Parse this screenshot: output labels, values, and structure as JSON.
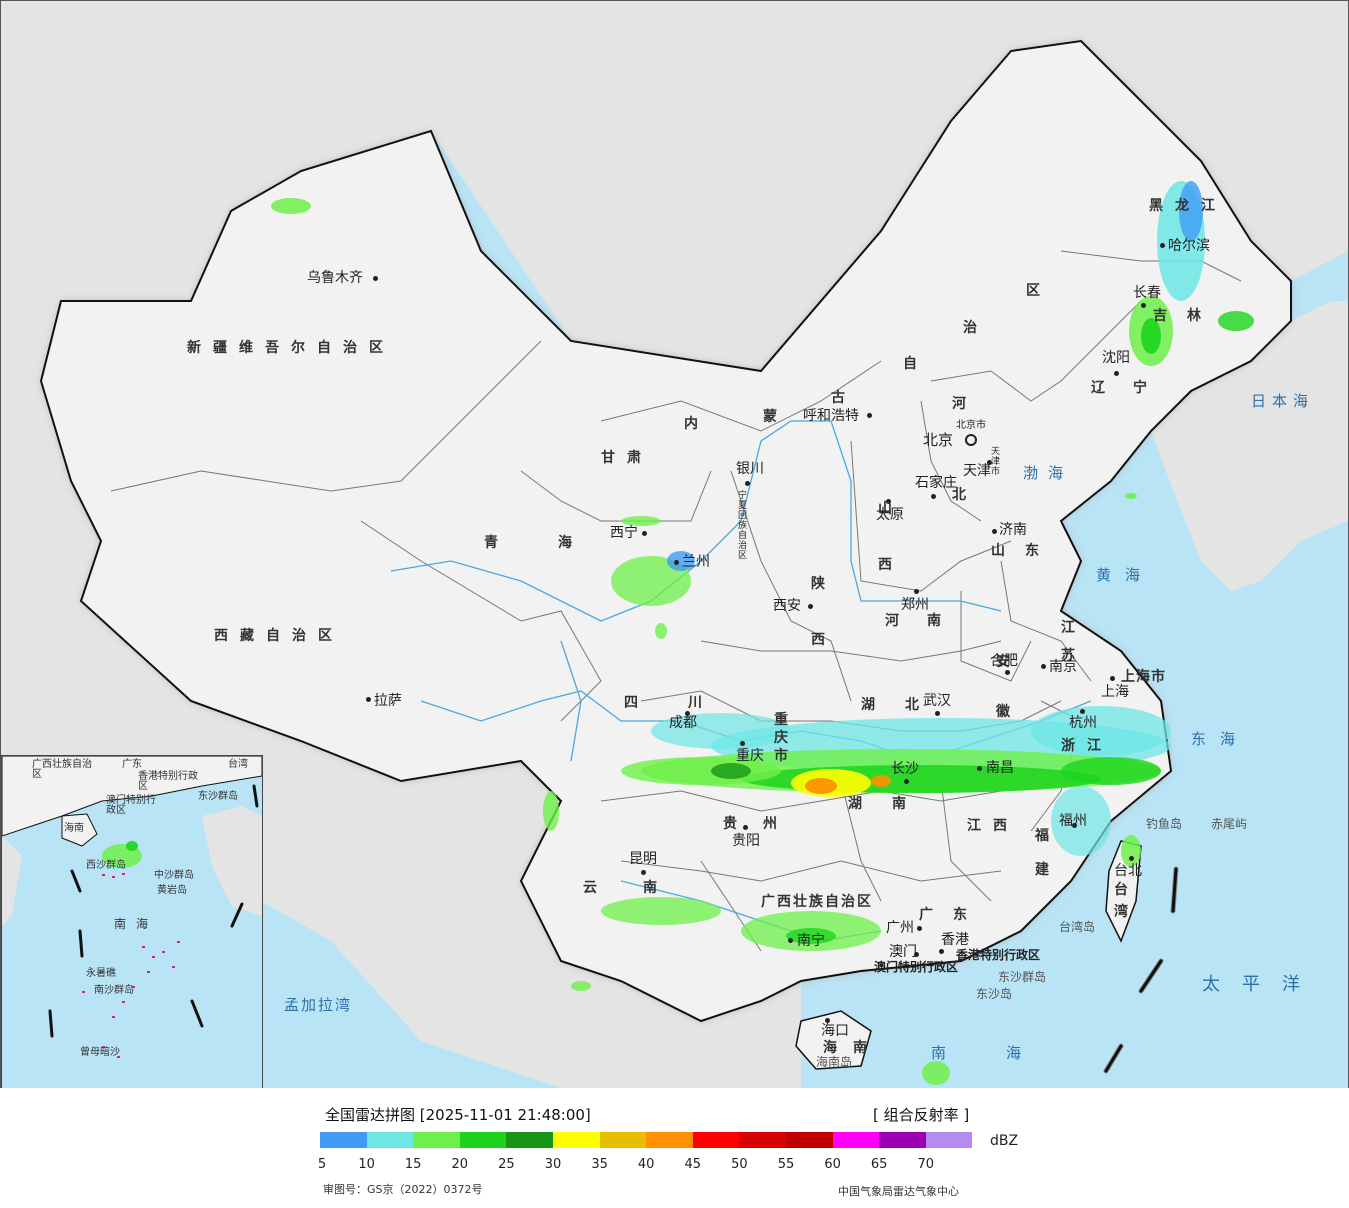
{
  "map": {
    "regions": {
      "xinjiang": "新疆维吾尔自治区",
      "xizang": "西藏自治区",
      "qinghai": "青海",
      "gansu": "甘肃",
      "neimenggu_1": "内",
      "neimenggu_2": "蒙",
      "neimenggu_3": "古",
      "neimenggu_4": "自",
      "neimenggu_5": "治",
      "neimenggu_6": "区",
      "heilongjiang": "黑龙江",
      "jilin": "吉林",
      "liaoning": "辽宁",
      "hebei_1": "河",
      "hebei_2": "北",
      "shanxi": "山西",
      "shaanxi": "陕西",
      "shandong": "山东",
      "henan": "河南",
      "jiangsu": "江苏",
      "anhui": "安徽",
      "sichuan": "四川",
      "chongqing": "重庆市",
      "hubei": "湖北",
      "hunan": "湖南",
      "jiangxi": "江西",
      "zhejiang": "浙江",
      "fujian": "福建",
      "guizhou": "贵州",
      "yunnan": "云南",
      "guangxi": "广西壮族自治区",
      "guangdong": "广东",
      "hainan": "海南",
      "taiwan": "台湾",
      "shanghai": "上海市",
      "ningxia": "宁夏回族自治区",
      "tianjin_region": "天津市",
      "beijing_region": "北京市",
      "hongkong": "香港特别行政区",
      "macau": "澳门特别行政区"
    },
    "cities": {
      "urumqi": "乌鲁木齐",
      "lhasa": "拉萨",
      "xining": "西宁",
      "lanzhou": "兰州",
      "yinchuan": "银川",
      "hohhot": "呼和浩特",
      "beijing": "北京",
      "tianjin": "天津",
      "shijiazhuang": "石家庄",
      "taiyuan": "太原",
      "jinan": "济南",
      "zhengzhou": "郑州",
      "xian": "西安",
      "harbin": "哈尔滨",
      "changchun": "长春",
      "shenyang": "沈阳",
      "nanjing": "南京",
      "hefei": "合肥",
      "shanghai": "上海",
      "hangzhou": "杭州",
      "wuhan": "武汉",
      "chengdu": "成都",
      "chongqing": "重庆",
      "changsha": "长沙",
      "nanchang": "南昌",
      "fuzhou": "福州",
      "guiyang": "贵阳",
      "kunming": "昆明",
      "nanning": "南宁",
      "guangzhou": "广州",
      "hongkong": "香港",
      "macau": "澳门",
      "haikou": "海口",
      "taibei": "台北"
    },
    "seas": {
      "japan_sea": "日本海",
      "bohai": "渤海",
      "yellow_sea": "黄海",
      "east_sea": "东海",
      "pacific": "太平洋",
      "south_sea": "南海",
      "bengal": "孟加拉湾"
    },
    "islands": {
      "diaoyu": "钓鱼岛",
      "chiwei": "赤尾屿",
      "taiwan_island": "台湾岛",
      "dongsha_islands": "东沙群岛",
      "dongsha": "东沙岛",
      "hainan_island": "海南岛"
    },
    "inset": {
      "guangdong": "广东",
      "taiwan": "台湾",
      "guangxi": "广西壮族自治区",
      "hongkong": "香港特别行政区",
      "macau": "澳门特别行政区",
      "dongsha": "东沙群岛",
      "hainan": "海南",
      "xisha": "西沙群岛",
      "zhongsha": "中沙群岛",
      "huangyan": "黄岩岛",
      "south_sea": "南海",
      "nansha": "南沙群岛",
      "yongshu": "永暑礁",
      "zengmu": "曾母暗沙"
    },
    "colors": {
      "sea": "#b8e4f6",
      "land_china": "#f2f2f2",
      "land_foreign": "#e4e4e4",
      "border_national": "#111111",
      "border_province": "#777777",
      "river": "#4aa8e0"
    }
  },
  "legend": {
    "title": "全国雷达拼图 [2025-11-01 21:48:00]",
    "product": "[ 组合反射率 ]",
    "unit": "dBZ",
    "colors": [
      "#3f9cf2",
      "#6de6e6",
      "#6ef04a",
      "#1dd41d",
      "#179617",
      "#ffff00",
      "#e6c000",
      "#ff9000",
      "#ff0000",
      "#d80000",
      "#c00000",
      "#ff00ff",
      "#9a00b4",
      "#b48cf0"
    ],
    "ticks": [
      "5",
      "10",
      "15",
      "20",
      "25",
      "30",
      "35",
      "40",
      "45",
      "50",
      "55",
      "60",
      "65",
      "70"
    ],
    "approval": "审图号：GS京（2022）0372号",
    "producer": "中国气象局雷达气象中心"
  }
}
